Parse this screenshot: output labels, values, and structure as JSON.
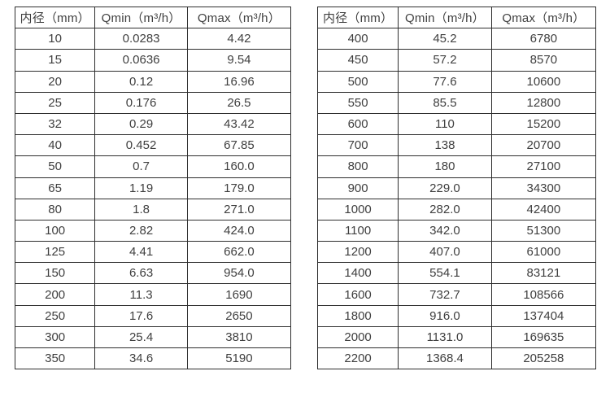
{
  "colors": {
    "background": "#ffffff",
    "border": "#2e2e2e",
    "text": "#3f3f3f"
  },
  "chart_data": [
    {
      "type": "table",
      "title": "",
      "headers": [
        "内径（mm）",
        "Qmin（m³/h）",
        "Qmax（m³/h）"
      ],
      "rows": [
        [
          "10",
          "0.0283",
          "4.42"
        ],
        [
          "15",
          "0.0636",
          "9.54"
        ],
        [
          "20",
          "0.12",
          "16.96"
        ],
        [
          "25",
          "0.176",
          "26.5"
        ],
        [
          "32",
          "0.29",
          "43.42"
        ],
        [
          "40",
          "0.452",
          "67.85"
        ],
        [
          "50",
          "0.7",
          "160.0"
        ],
        [
          "65",
          "1.19",
          "179.0"
        ],
        [
          "80",
          "1.8",
          "271.0"
        ],
        [
          "100",
          "2.82",
          "424.0"
        ],
        [
          "125",
          "4.41",
          "662.0"
        ],
        [
          "150",
          "6.63",
          "954.0"
        ],
        [
          "200",
          "11.3",
          "1690"
        ],
        [
          "250",
          "17.6",
          "2650"
        ],
        [
          "300",
          "25.4",
          "3810"
        ],
        [
          "350",
          "34.6",
          "5190"
        ]
      ]
    },
    {
      "type": "table",
      "title": "",
      "headers": [
        "内径（mm）",
        "Qmin（m³/h）",
        "Qmax（m³/h）"
      ],
      "rows": [
        [
          "400",
          "45.2",
          "6780"
        ],
        [
          "450",
          "57.2",
          "8570"
        ],
        [
          "500",
          "77.6",
          "10600"
        ],
        [
          "550",
          "85.5",
          "12800"
        ],
        [
          "600",
          "110",
          "15200"
        ],
        [
          "700",
          "138",
          "20700"
        ],
        [
          "800",
          "180",
          "27100"
        ],
        [
          "900",
          "229.0",
          "34300"
        ],
        [
          "1000",
          "282.0",
          "42400"
        ],
        [
          "1100",
          "342.0",
          "51300"
        ],
        [
          "1200",
          "407.0",
          "61000"
        ],
        [
          "1400",
          "554.1",
          "83121"
        ],
        [
          "1600",
          "732.7",
          "108566"
        ],
        [
          "1800",
          "916.0",
          "137404"
        ],
        [
          "2000",
          "1131.0",
          "169635"
        ],
        [
          "2200",
          "1368.4",
          "205258"
        ]
      ]
    }
  ]
}
